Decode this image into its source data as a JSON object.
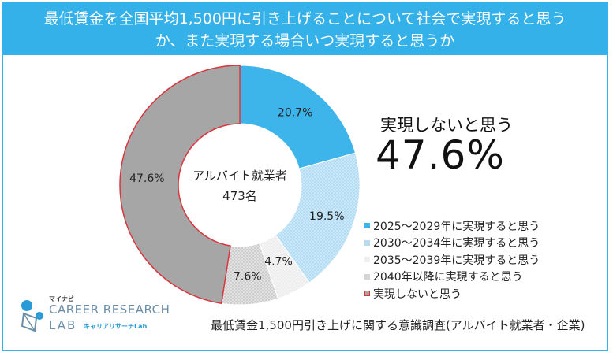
{
  "header": {
    "line1": "最低賃金を全国平均1,500円に引き上げることについて社会で実現すると思う",
    "line2": "か、また実現する場合いつ実現すると思うか"
  },
  "chart_data": {
    "type": "pie",
    "title": "最低賃金を全国平均1,500円に引き上げることについて社会で実現すると思うか、また実現する場合いつ実現すると思うか",
    "center_label": [
      "アルバイト就業者",
      "473名"
    ],
    "slices": [
      {
        "label": "2025～2029年に実現すると思う",
        "value": 20.7,
        "display": "20.7%",
        "color": "#3db4ea"
      },
      {
        "label": "2030～2034年に実現すると思う",
        "value": 19.5,
        "display": "19.5%",
        "color": "#c4e4f6"
      },
      {
        "label": "2035～2039年に実現すると思う",
        "value": 4.7,
        "display": "4.7%",
        "color": "#eeeeee"
      },
      {
        "label": "2040年以降に実現すると思う",
        "value": 7.6,
        "display": "7.6%",
        "color": "#d4d4d4"
      },
      {
        "label": "実現しないと思う",
        "value": 47.6,
        "display": "47.6%",
        "color": "#a6a6a6",
        "stroke": "#d9363e"
      }
    ]
  },
  "callout": {
    "label": "実現しないと思う",
    "value": "47.6%"
  },
  "source": "最低賃金1,500円引き上げに関する意識調査(アルバイト就業者・企業)",
  "logo": {
    "brand": "マイナビ",
    "line1": "CAREER RESEARCH",
    "line2": "LAB",
    "sub": "キャリアリサーチLab"
  },
  "colors": {
    "accent": "#33b1e8",
    "highlight_border": "#d9363e"
  }
}
